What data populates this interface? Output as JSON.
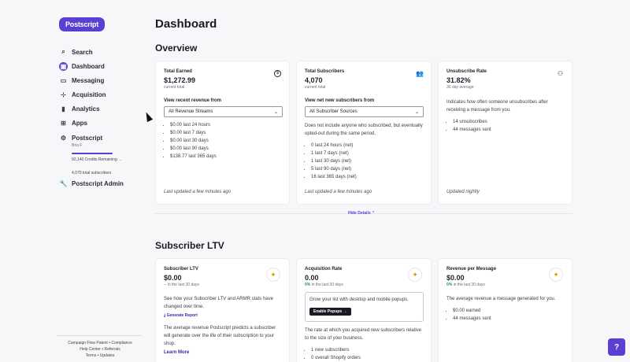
{
  "brand": {
    "logo_text": "Postscript",
    "accent": "#5a3fd1"
  },
  "sidebar": {
    "items": [
      {
        "label": "Search",
        "icon": "search-icon",
        "glyph": "⌕"
      },
      {
        "label": "Dashboard",
        "icon": "dashboard-icon",
        "glyph": "▣"
      },
      {
        "label": "Messaging",
        "icon": "chat-icon",
        "glyph": "💬"
      },
      {
        "label": "Acquisition",
        "icon": "acquisition-icon",
        "glyph": "⊹"
      },
      {
        "label": "Analytics",
        "icon": "analytics-icon",
        "glyph": "▮"
      },
      {
        "label": "Apps",
        "icon": "apps-icon",
        "glyph": "⊞"
      }
    ],
    "account": {
      "name": "Postscript",
      "sub": "Bria F",
      "credits_fraction": 1.0,
      "credits_text": "92,140 Credits Remaining →",
      "subscribers_text": "4,070 total subscribers"
    },
    "admin_label": "Postscript Admin",
    "footer": {
      "line1": "Campaign Flow Patent • Compliance",
      "line2": "Help Center • Referrals",
      "line3": "Terms • Updates"
    }
  },
  "main": {
    "title": "Dashboard",
    "overview_title": "Overview",
    "ltv_title": "Subscriber LTV",
    "hide_details": "Hide Details ⌃"
  },
  "overview": {
    "earned": {
      "title": "Total Earned",
      "value": "$1,272.99",
      "sub": "current total",
      "select_label": "View recent revenue from",
      "select_value": "All Revenue Streams",
      "items": [
        "$0.00 last 24 hours",
        "$0.00 last 7 days",
        "$0.00 last 30 days",
        "$0.00 last 90 days",
        "$138.77 last 365 days"
      ],
      "updated": "Last updated a few minutes ago"
    },
    "subscribers": {
      "title": "Total Subscribers",
      "value": "4,070",
      "sub": "current total",
      "select_label": "View net new subscribers from",
      "select_value": "All Subscriber Sources",
      "note": "Does not include anyone who subscribed, but eventually opted-out during the same period.",
      "items": [
        "0 last 24 hours (net)",
        "1 last 7 days (net)",
        "1 last 30 days (net)",
        "5 last 90 days (net)",
        "16 last 365 days (net)"
      ],
      "updated": "Last updated a few minutes ago"
    },
    "unsub": {
      "title": "Unsubscribe Rate",
      "value": "31.82%",
      "sub": "30 day average",
      "note": "Indicates how often someone unsubscribes after receiving a message from you.",
      "items": [
        "14 unsubscribes",
        "44 messages sent"
      ],
      "updated": "Updated nightly"
    }
  },
  "ltv": {
    "subscriber_ltv": {
      "title": "Subscriber LTV",
      "value": "$0.00",
      "sub": "-- in the last 30 days",
      "note": "See how your Subscriber LTV and ARMR stats have changed over time.",
      "report_link": "⤓ Generate Report",
      "note2": "The average revenue Postscript predicts a subscriber will generate over the life of their subscription to your shop.",
      "learn_more": "Learn More"
    },
    "acquisition": {
      "title": "Acquisition Rate",
      "value": "0.00",
      "sub_green": "0%",
      "sub_rest": " in the last 30 days",
      "popup_text": "Grow your list with desktop and mobile popups.",
      "popup_btn": "Enable Popups →",
      "note": "The rate at which you acquired new subscribers relative to the size of your business.",
      "items": [
        "1 new subscribers",
        "0 overall Shopify orders"
      ]
    },
    "rpm": {
      "title": "Revenue per Message",
      "value": "$0.00",
      "sub_green": "0%",
      "sub_rest": " in the last 30 days",
      "note": "The average revenue a message generated for you.",
      "items": [
        "$0.00 earned",
        "44 messages sent"
      ]
    }
  },
  "help": {
    "glyph": "?"
  }
}
